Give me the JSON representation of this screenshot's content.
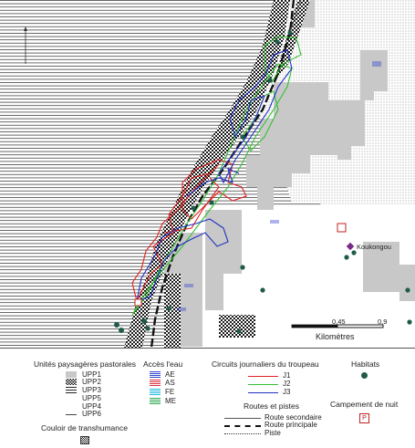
{
  "map": {
    "village_label": "Koukongou",
    "scale_labels": [
      "0,45",
      "0,9"
    ],
    "scale_unit": "Kilomètres",
    "colors": {
      "circuit_j1": "#e02020",
      "circuit_j2": "#35c035",
      "circuit_j3": "#2030c0",
      "upp1": "#c8c8c8",
      "water_ae": "#3344cc",
      "water_as": "#dd3344",
      "water_fe": "#22bbdd",
      "water_me": "#33aa55",
      "habitat": "#1f5a4a"
    }
  },
  "legend": {
    "landscape": {
      "title": "Unités paysagères pastorales",
      "items": [
        "UPP1",
        "UPP2",
        "UPP3",
        "UPP5",
        "UPP4",
        "UPP6"
      ]
    },
    "corridor": {
      "title": "Couloir de transhumance"
    },
    "water": {
      "title": "Accès l'eau",
      "items": [
        "AE",
        "AS",
        "FE",
        "ME"
      ]
    },
    "circuits": {
      "title": "Circuits journaliers du troupeau",
      "items": [
        "J1",
        "J2",
        "J3"
      ]
    },
    "roads": {
      "title": "Routes et pistes",
      "items": [
        "Route secondaire",
        "Route principale",
        "Piste"
      ]
    },
    "habitats": {
      "title": "Habitats"
    },
    "camp": {
      "title": "Campement de nuit",
      "symbol": "P"
    }
  }
}
